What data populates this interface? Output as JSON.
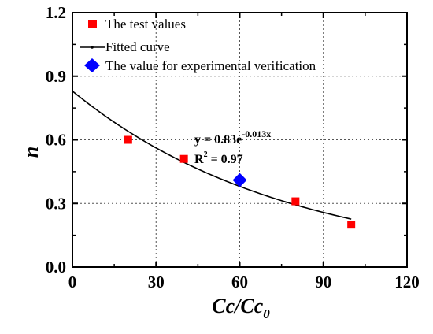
{
  "chart_data": {
    "type": "scatter",
    "xlabel": "Cc/Cc",
    "xlabel_sub": "0",
    "ylabel": "n",
    "xlim": [
      0,
      120
    ],
    "ylim": [
      0,
      1.2
    ],
    "xticks": [
      "0",
      "30",
      "60",
      "90",
      "120"
    ],
    "yticks": [
      "0.0",
      "0.3",
      "0.6",
      "0.9",
      "1.2"
    ],
    "grid": true,
    "legend_position": "top-left",
    "series": [
      {
        "name": "The test values",
        "kind": "scatter",
        "marker": "square",
        "color": "#ff0000",
        "x": [
          20,
          40,
          80,
          100
        ],
        "y": [
          0.6,
          0.51,
          0.31,
          0.2
        ]
      },
      {
        "name": "Fitted curve",
        "kind": "line",
        "color": "#000000",
        "equation": {
          "a": 0.83,
          "b": -0.013
        },
        "x_range": [
          0,
          100
        ]
      },
      {
        "name": "The value for experimental verification",
        "kind": "scatter",
        "marker": "diamond",
        "color": "#0000ff",
        "x": [
          60
        ],
        "y": [
          0.41
        ]
      }
    ],
    "annotations": {
      "equation_main": "y = 0.83e",
      "equation_exp": "-0.013x",
      "r2_prefix": "R",
      "r2_sup": "2",
      "r2_value": " = 0.97"
    }
  }
}
